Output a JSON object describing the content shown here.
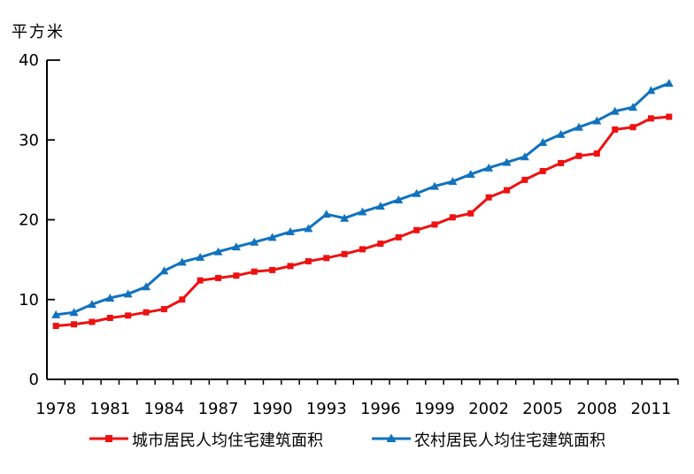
{
  "chart": {
    "unit_label": "平方米"
  },
  "legend": {
    "urban_label": "城市居民人均住宅建筑面积",
    "rural_label": "农村居民人均住宅建筑面积"
  },
  "colors": {
    "urban_red": "#ee1111",
    "rural_blue": "#1172be",
    "axis_black": "#000000"
  },
  "chart_data": {
    "type": "line",
    "title": "",
    "ylabel": "平方米",
    "xlabel": "",
    "grid": false,
    "legend_position": "bottom",
    "ylim": [
      0,
      40
    ],
    "yticks": [
      0,
      10,
      20,
      30,
      40
    ],
    "xtick_labels": [
      "1978",
      "1981",
      "1984",
      "1987",
      "1990",
      "1993",
      "1996",
      "1999",
      "2002",
      "2005",
      "2008",
      "2011"
    ],
    "x": [
      1978,
      1979,
      1980,
      1981,
      1982,
      1983,
      1984,
      1985,
      1986,
      1987,
      1988,
      1989,
      1990,
      1991,
      1992,
      1993,
      1994,
      1995,
      1996,
      1997,
      1998,
      1999,
      2000,
      2001,
      2002,
      2003,
      2004,
      2005,
      2006,
      2007,
      2008,
      2009,
      2010,
      2011,
      2012
    ],
    "series": [
      {
        "name": "城市居民人均住宅建筑面积",
        "color": "#ee1111",
        "marker": "square",
        "values": [
          6.7,
          6.9,
          7.2,
          7.7,
          8.0,
          8.4,
          8.8,
          10.0,
          12.4,
          12.7,
          13.0,
          13.5,
          13.7,
          14.2,
          14.8,
          15.2,
          15.7,
          16.3,
          17.0,
          17.8,
          18.7,
          19.4,
          20.3,
          20.8,
          22.8,
          23.7,
          25.0,
          26.1,
          27.1,
          28.0,
          28.3,
          31.3,
          31.6,
          32.7,
          32.9
        ]
      },
      {
        "name": "农村居民人均住宅建筑面积",
        "color": "#1172be",
        "marker": "triangle",
        "values": [
          8.1,
          8.4,
          9.4,
          10.2,
          10.7,
          11.6,
          13.6,
          14.7,
          15.3,
          16.0,
          16.6,
          17.2,
          17.8,
          18.5,
          18.9,
          20.7,
          20.2,
          21.0,
          21.7,
          22.5,
          23.3,
          24.2,
          24.8,
          25.7,
          26.5,
          27.2,
          27.9,
          29.7,
          30.7,
          31.6,
          32.4,
          33.6,
          34.1,
          36.2,
          37.1
        ]
      }
    ]
  }
}
